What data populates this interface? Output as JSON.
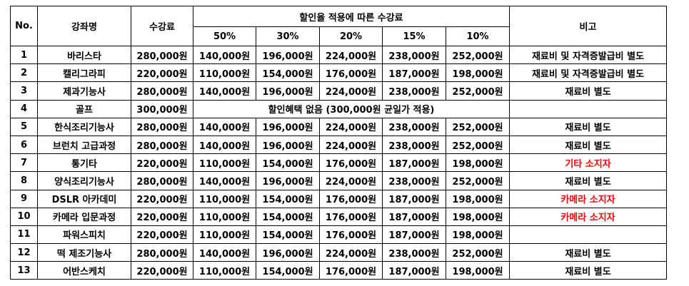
{
  "header": {
    "no": "No.",
    "course": "강좌명",
    "fee": "수강료",
    "discount_group": "할인율 적용에 따른 수강료",
    "remarks": "비고",
    "rates": [
      "50%",
      "30%",
      "20%",
      "15%",
      "10%"
    ]
  },
  "rows": [
    {
      "no": "1",
      "course": "바리스타",
      "fee": "280,000원",
      "d50": "140,000원",
      "d30": "196,000원",
      "d20": "224,000원",
      "d15": "238,000원",
      "d10": "252,000원",
      "remark": "재료비 및 자격증발급비 별도"
    },
    {
      "no": "2",
      "course": "캘리그라피",
      "fee": "220,000원",
      "d50": "110,000원",
      "d30": "154,000원",
      "d20": "176,000원",
      "d15": "187,000원",
      "d10": "198,000원",
      "remark": "재료비 및 자격증발급비 별도"
    },
    {
      "no": "3",
      "course": "제과기능사",
      "fee": "280,000원",
      "d50": "140,000원",
      "d30": "196,000원",
      "d20": "224,000원",
      "d15": "238,000원",
      "d10": "252,000원",
      "remark": "재료비 별도"
    },
    {
      "no": "4",
      "course": "골프",
      "fee": "300,000원",
      "merged": "할인혜택 없음 (300,000원 균일가 적용)",
      "remark": ""
    },
    {
      "no": "5",
      "course": "한식조리기능사",
      "fee": "280,000원",
      "d50": "140,000원",
      "d30": "196,000원",
      "d20": "224,000원",
      "d15": "238,000원",
      "d10": "252,000원",
      "remark": "재료비 별도"
    },
    {
      "no": "6",
      "course": "브런치 고급과정",
      "fee": "280,000원",
      "d50": "140,000원",
      "d30": "196,000원",
      "d20": "224,000원",
      "d15": "238,000원",
      "d10": "252,000원",
      "remark": "재료비 별도"
    },
    {
      "no": "7",
      "course": "통기타",
      "fee": "220,000원",
      "d50": "110,000원",
      "d30": "154,000원",
      "d20": "176,000원",
      "d15": "187,000원",
      "d10": "198,000원",
      "remark": "기타 소지자",
      "remark_color": "#ff0000"
    },
    {
      "no": "8",
      "course": "양식조리기능사",
      "fee": "280,000원",
      "d50": "140,000원",
      "d30": "196,000원",
      "d20": "224,000원",
      "d15": "238,000원",
      "d10": "252,000원",
      "remark": "재료비 별도"
    },
    {
      "no": "9",
      "course": "DSLR 아카데미",
      "fee": "220,000원",
      "d50": "110,000원",
      "d30": "154,000원",
      "d20": "176,000원",
      "d15": "187,000원",
      "d10": "198,000원",
      "remark": "카메라 소지자",
      "remark_color": "#ff0000"
    },
    {
      "no": "10",
      "course": "카메라 입문과정",
      "fee": "220,000원",
      "d50": "110,000원",
      "d30": "154,000원",
      "d20": "176,000원",
      "d15": "187,000원",
      "d10": "198,000원",
      "remark": "카메라 소지자",
      "remark_color": "#ff0000"
    },
    {
      "no": "11",
      "course": "파워스피치",
      "fee": "220,000원",
      "d50": "110,000원",
      "d30": "154,000원",
      "d20": "176,000원",
      "d15": "187,000원",
      "d10": "198,000원",
      "remark": ""
    },
    {
      "no": "12",
      "course": "떡 제조기능사",
      "fee": "280,000원",
      "d50": "140,000원",
      "d30": "196,000원",
      "d20": "224,000원",
      "d15": "238,000원",
      "d10": "252,000원",
      "remark": "재료비 별도"
    },
    {
      "no": "13",
      "course": "어반스케치",
      "fee": "220,000원",
      "d50": "110,000원",
      "d30": "154,000원",
      "d20": "176,000원",
      "d15": "187,000원",
      "d10": "198,000원",
      "remark": "재료비 별도"
    }
  ]
}
